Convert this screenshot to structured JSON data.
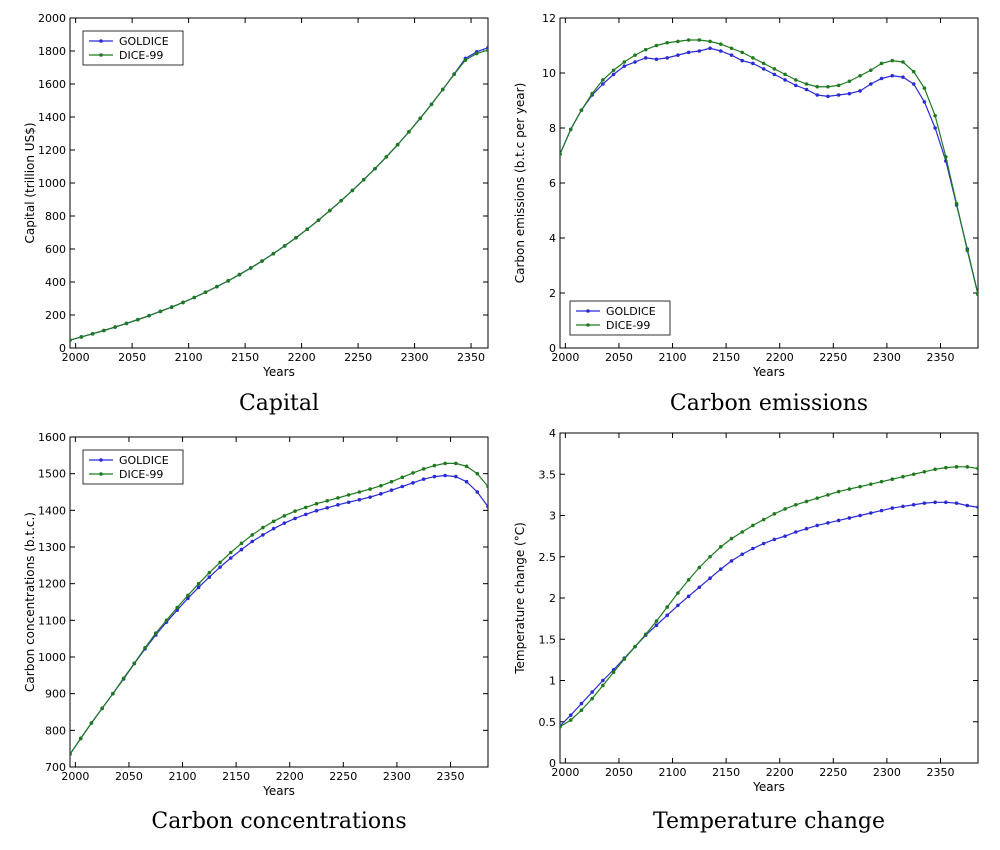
{
  "colors": {
    "goldice": "#2a2ad6",
    "dice": "#1f7a1f"
  },
  "chart_data": [
    {
      "type": "line",
      "caption": "Capital",
      "xlabel": "Years",
      "ylabel": "Capital (trillion US$)",
      "xlim": [
        1995,
        2365
      ],
      "ylim": [
        0,
        2000
      ],
      "xticks": [
        2000,
        2050,
        2100,
        2150,
        2200,
        2250,
        2300,
        2350
      ],
      "yticks": [
        0,
        200,
        400,
        600,
        800,
        1000,
        1200,
        1400,
        1600,
        1800,
        2000
      ],
      "legend": "top-left",
      "x": [
        1995,
        2005,
        2015,
        2025,
        2035,
        2045,
        2055,
        2065,
        2075,
        2085,
        2095,
        2105,
        2115,
        2125,
        2135,
        2145,
        2155,
        2165,
        2175,
        2185,
        2195,
        2205,
        2215,
        2225,
        2235,
        2245,
        2255,
        2265,
        2275,
        2285,
        2295,
        2305,
        2315,
        2325,
        2335,
        2345,
        2355,
        2365
      ],
      "series": [
        {
          "name": "GOLDICE",
          "color": "goldice",
          "values": [
            48,
            67,
            86,
            106,
            127,
            149,
            172,
            196,
            222,
            248,
            276,
            306,
            338,
            372,
            407,
            445,
            485,
            527,
            572,
            619,
            668,
            720,
            775,
            833,
            893,
            955,
            1020,
            1087,
            1158,
            1232,
            1310,
            1392,
            1477,
            1567,
            1660,
            1755,
            1795,
            1820
          ]
        },
        {
          "name": "DICE-99",
          "color": "dice",
          "values": [
            48,
            67,
            86,
            106,
            127,
            149,
            172,
            196,
            222,
            248,
            276,
            306,
            338,
            372,
            407,
            445,
            485,
            527,
            572,
            619,
            668,
            720,
            775,
            833,
            893,
            955,
            1020,
            1087,
            1158,
            1232,
            1310,
            1392,
            1477,
            1567,
            1658,
            1745,
            1785,
            1805
          ]
        }
      ]
    },
    {
      "type": "line",
      "caption": "Carbon emissions",
      "xlabel": "Years",
      "ylabel": "Carbon emissions (b.t.c per year)",
      "xlim": [
        1995,
        2385
      ],
      "ylim": [
        0,
        12
      ],
      "xticks": [
        2000,
        2050,
        2100,
        2150,
        2200,
        2250,
        2300,
        2350
      ],
      "yticks": [
        0,
        2,
        4,
        6,
        8,
        10,
        12
      ],
      "legend": "bottom-left",
      "x": [
        1995,
        2005,
        2015,
        2025,
        2035,
        2045,
        2055,
        2065,
        2075,
        2085,
        2095,
        2105,
        2115,
        2125,
        2135,
        2145,
        2155,
        2165,
        2175,
        2185,
        2195,
        2205,
        2215,
        2225,
        2235,
        2245,
        2255,
        2265,
        2275,
        2285,
        2295,
        2305,
        2315,
        2325,
        2335,
        2345,
        2355,
        2365,
        2375,
        2385
      ],
      "series": [
        {
          "name": "GOLDICE",
          "color": "goldice",
          "values": [
            7.05,
            7.95,
            8.65,
            9.2,
            9.6,
            9.95,
            10.25,
            10.4,
            10.55,
            10.5,
            10.55,
            10.65,
            10.75,
            10.8,
            10.9,
            10.8,
            10.65,
            10.45,
            10.35,
            10.15,
            9.95,
            9.75,
            9.55,
            9.4,
            9.2,
            9.15,
            9.2,
            9.25,
            9.35,
            9.6,
            9.8,
            9.9,
            9.85,
            9.6,
            8.95,
            8.0,
            6.8,
            5.2,
            3.6,
            1.95
          ]
        },
        {
          "name": "DICE-99",
          "color": "dice",
          "values": [
            7.05,
            7.95,
            8.65,
            9.25,
            9.75,
            10.1,
            10.4,
            10.65,
            10.85,
            11.0,
            11.1,
            11.15,
            11.2,
            11.2,
            11.15,
            11.05,
            10.9,
            10.75,
            10.55,
            10.35,
            10.15,
            9.95,
            9.75,
            9.6,
            9.5,
            9.5,
            9.55,
            9.7,
            9.9,
            10.1,
            10.35,
            10.45,
            10.4,
            10.05,
            9.45,
            8.45,
            6.95,
            5.25,
            3.55,
            1.95
          ]
        }
      ]
    },
    {
      "type": "line",
      "caption": "Carbon concentrations",
      "xlabel": "Years",
      "ylabel": "Carbon concentrations (b.t.c.)",
      "xlim": [
        1995,
        2385
      ],
      "ylim": [
        700,
        1600
      ],
      "xticks": [
        2000,
        2050,
        2100,
        2150,
        2200,
        2250,
        2300,
        2350
      ],
      "yticks": [
        700,
        800,
        900,
        1000,
        1100,
        1200,
        1300,
        1400,
        1500,
        1600
      ],
      "legend": "top-left",
      "x": [
        1995,
        2005,
        2015,
        2025,
        2035,
        2045,
        2055,
        2065,
        2075,
        2085,
        2095,
        2105,
        2115,
        2125,
        2135,
        2145,
        2155,
        2165,
        2175,
        2185,
        2195,
        2205,
        2215,
        2225,
        2235,
        2245,
        2255,
        2265,
        2275,
        2285,
        2295,
        2305,
        2315,
        2325,
        2335,
        2345,
        2355,
        2365,
        2375,
        2385
      ],
      "series": [
        {
          "name": "GOLDICE",
          "color": "goldice",
          "values": [
            735,
            778,
            820,
            860,
            900,
            940,
            982,
            1022,
            1060,
            1095,
            1128,
            1160,
            1190,
            1218,
            1245,
            1270,
            1293,
            1315,
            1333,
            1350,
            1365,
            1378,
            1389,
            1399,
            1407,
            1415,
            1422,
            1429,
            1436,
            1445,
            1455,
            1465,
            1475,
            1485,
            1492,
            1495,
            1492,
            1478,
            1450,
            1410
          ]
        },
        {
          "name": "DICE-99",
          "color": "dice",
          "values": [
            735,
            778,
            820,
            860,
            900,
            942,
            983,
            1025,
            1065,
            1100,
            1135,
            1168,
            1200,
            1230,
            1258,
            1285,
            1310,
            1333,
            1353,
            1370,
            1385,
            1398,
            1408,
            1418,
            1426,
            1434,
            1442,
            1450,
            1458,
            1467,
            1478,
            1490,
            1502,
            1513,
            1522,
            1528,
            1528,
            1520,
            1500,
            1465
          ]
        }
      ]
    },
    {
      "type": "line",
      "caption": "Temperature change",
      "xlabel": "Years",
      "ylabel": "Temperature change (°C)",
      "xlim": [
        1995,
        2385
      ],
      "ylim": [
        0,
        4
      ],
      "xticks": [
        2000,
        2050,
        2100,
        2150,
        2200,
        2250,
        2300,
        2350
      ],
      "yticks": [
        0,
        0.5,
        1,
        1.5,
        2,
        2.5,
        3,
        3.5,
        4
      ],
      "legend": "none",
      "x": [
        1995,
        2005,
        2015,
        2025,
        2035,
        2045,
        2055,
        2065,
        2075,
        2085,
        2095,
        2105,
        2115,
        2125,
        2135,
        2145,
        2155,
        2165,
        2175,
        2185,
        2195,
        2205,
        2215,
        2225,
        2235,
        2245,
        2255,
        2265,
        2275,
        2285,
        2295,
        2305,
        2315,
        2325,
        2335,
        2345,
        2355,
        2365,
        2375,
        2385
      ],
      "series": [
        {
          "name": "GOLDICE",
          "color": "goldice",
          "values": [
            0.45,
            0.58,
            0.72,
            0.86,
            1.0,
            1.13,
            1.27,
            1.41,
            1.55,
            1.67,
            1.79,
            1.91,
            2.02,
            2.13,
            2.24,
            2.35,
            2.45,
            2.53,
            2.6,
            2.66,
            2.71,
            2.75,
            2.8,
            2.84,
            2.88,
            2.91,
            2.94,
            2.97,
            3.0,
            3.03,
            3.06,
            3.09,
            3.11,
            3.13,
            3.15,
            3.16,
            3.16,
            3.15,
            3.12,
            3.1
          ]
        },
        {
          "name": "DICE-99",
          "color": "dice",
          "values": [
            0.44,
            0.52,
            0.64,
            0.78,
            0.94,
            1.1,
            1.26,
            1.41,
            1.56,
            1.72,
            1.89,
            2.06,
            2.22,
            2.37,
            2.5,
            2.62,
            2.72,
            2.8,
            2.88,
            2.95,
            3.02,
            3.08,
            3.13,
            3.17,
            3.21,
            3.25,
            3.29,
            3.32,
            3.35,
            3.38,
            3.41,
            3.44,
            3.47,
            3.5,
            3.53,
            3.56,
            3.58,
            3.59,
            3.59,
            3.57
          ]
        }
      ]
    }
  ]
}
